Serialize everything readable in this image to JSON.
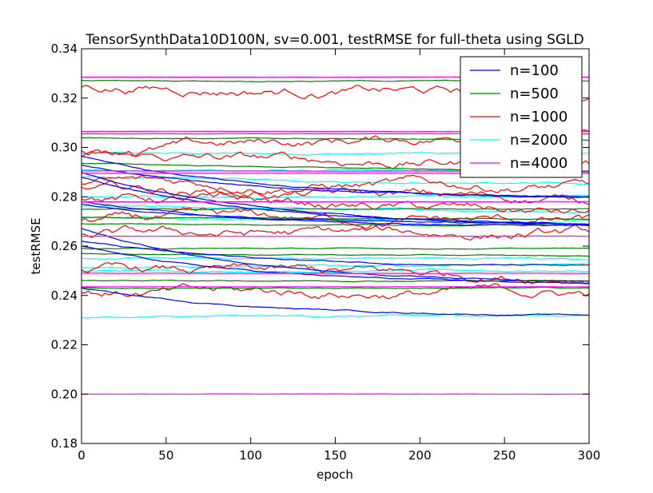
{
  "chart_data": {
    "type": "line",
    "title": "TensorSynthData10D100N, sv=0.001, testRMSE for full-theta using SGLD",
    "xlabel": "epoch",
    "ylabel": "testRMSE",
    "xlim": [
      0,
      300
    ],
    "ylim": [
      0.18,
      0.34
    ],
    "xticks": [
      "0",
      "50",
      "100",
      "150",
      "200",
      "250",
      "300"
    ],
    "yticks": [
      "0.18",
      "0.20",
      "0.22",
      "0.24",
      "0.26",
      "0.28",
      "0.30",
      "0.32",
      "0.34"
    ],
    "legend_position": "top-right",
    "grid": false,
    "series": [
      {
        "name": "n=100",
        "color": "#0000ff",
        "runs": [
          {
            "start": 0.2965,
            "end": 0.28
          },
          {
            "start": 0.293,
            "end": 0.28
          },
          {
            "start": 0.29,
            "end": 0.269
          },
          {
            "start": 0.288,
            "end": 0.269
          },
          {
            "start": 0.278,
            "end": 0.268
          },
          {
            "start": 0.277,
            "end": 0.269
          },
          {
            "start": 0.267,
            "end": 0.246
          },
          {
            "start": 0.262,
            "end": 0.252
          },
          {
            "start": 0.26,
            "end": 0.245
          },
          {
            "start": 0.243,
            "end": 0.232
          }
        ]
      },
      {
        "name": "n=500",
        "color": "#008000",
        "runs": [
          {
            "start": 0.327,
            "end": 0.327
          },
          {
            "start": 0.304,
            "end": 0.303
          },
          {
            "start": 0.2935,
            "end": 0.29
          },
          {
            "start": 0.275,
            "end": 0.275
          },
          {
            "start": 0.2715,
            "end": 0.271
          },
          {
            "start": 0.269,
            "end": 0.2685
          },
          {
            "start": 0.259,
            "end": 0.259
          },
          {
            "start": 0.257,
            "end": 0.256
          },
          {
            "start": 0.246,
            "end": 0.246
          },
          {
            "start": 0.243,
            "end": 0.243
          }
        ]
      },
      {
        "name": "n=1000",
        "color": "#ff0000",
        "runs": [
          {
            "start": 0.325,
            "end": 0.321
          },
          {
            "start": 0.299,
            "end": 0.306
          },
          {
            "start": 0.296,
            "end": 0.293
          },
          {
            "start": 0.286,
            "end": 0.284
          },
          {
            "start": 0.283,
            "end": 0.279
          },
          {
            "start": 0.28,
            "end": 0.273
          },
          {
            "start": 0.271,
            "end": 0.27
          },
          {
            "start": 0.265,
            "end": 0.265
          },
          {
            "start": 0.25,
            "end": 0.248
          },
          {
            "start": 0.241,
            "end": 0.241
          }
        ]
      },
      {
        "name": "n=2000",
        "color": "#00ffff",
        "runs": [
          {
            "start": 0.2975,
            "end": 0.2975
          },
          {
            "start": 0.291,
            "end": 0.29
          },
          {
            "start": 0.288,
            "end": 0.285
          },
          {
            "start": 0.28,
            "end": 0.28
          },
          {
            "start": 0.276,
            "end": 0.274
          },
          {
            "start": 0.272,
            "end": 0.27
          },
          {
            "start": 0.255,
            "end": 0.255
          },
          {
            "start": 0.251,
            "end": 0.253
          },
          {
            "start": 0.25,
            "end": 0.25
          },
          {
            "start": 0.231,
            "end": 0.232
          }
        ]
      },
      {
        "name": "n=4000",
        "color": "#ff00ff",
        "runs": [
          {
            "start": 0.3285,
            "end": 0.3285
          },
          {
            "start": 0.3065,
            "end": 0.3065
          },
          {
            "start": 0.3055,
            "end": 0.3055
          },
          {
            "start": 0.2905,
            "end": 0.2905
          },
          {
            "start": 0.2895,
            "end": 0.2895
          },
          {
            "start": 0.278,
            "end": 0.278
          },
          {
            "start": 0.264,
            "end": 0.264
          },
          {
            "start": 0.249,
            "end": 0.249
          },
          {
            "start": 0.2435,
            "end": 0.2435
          },
          {
            "start": 0.2,
            "end": 0.2
          }
        ]
      }
    ]
  }
}
